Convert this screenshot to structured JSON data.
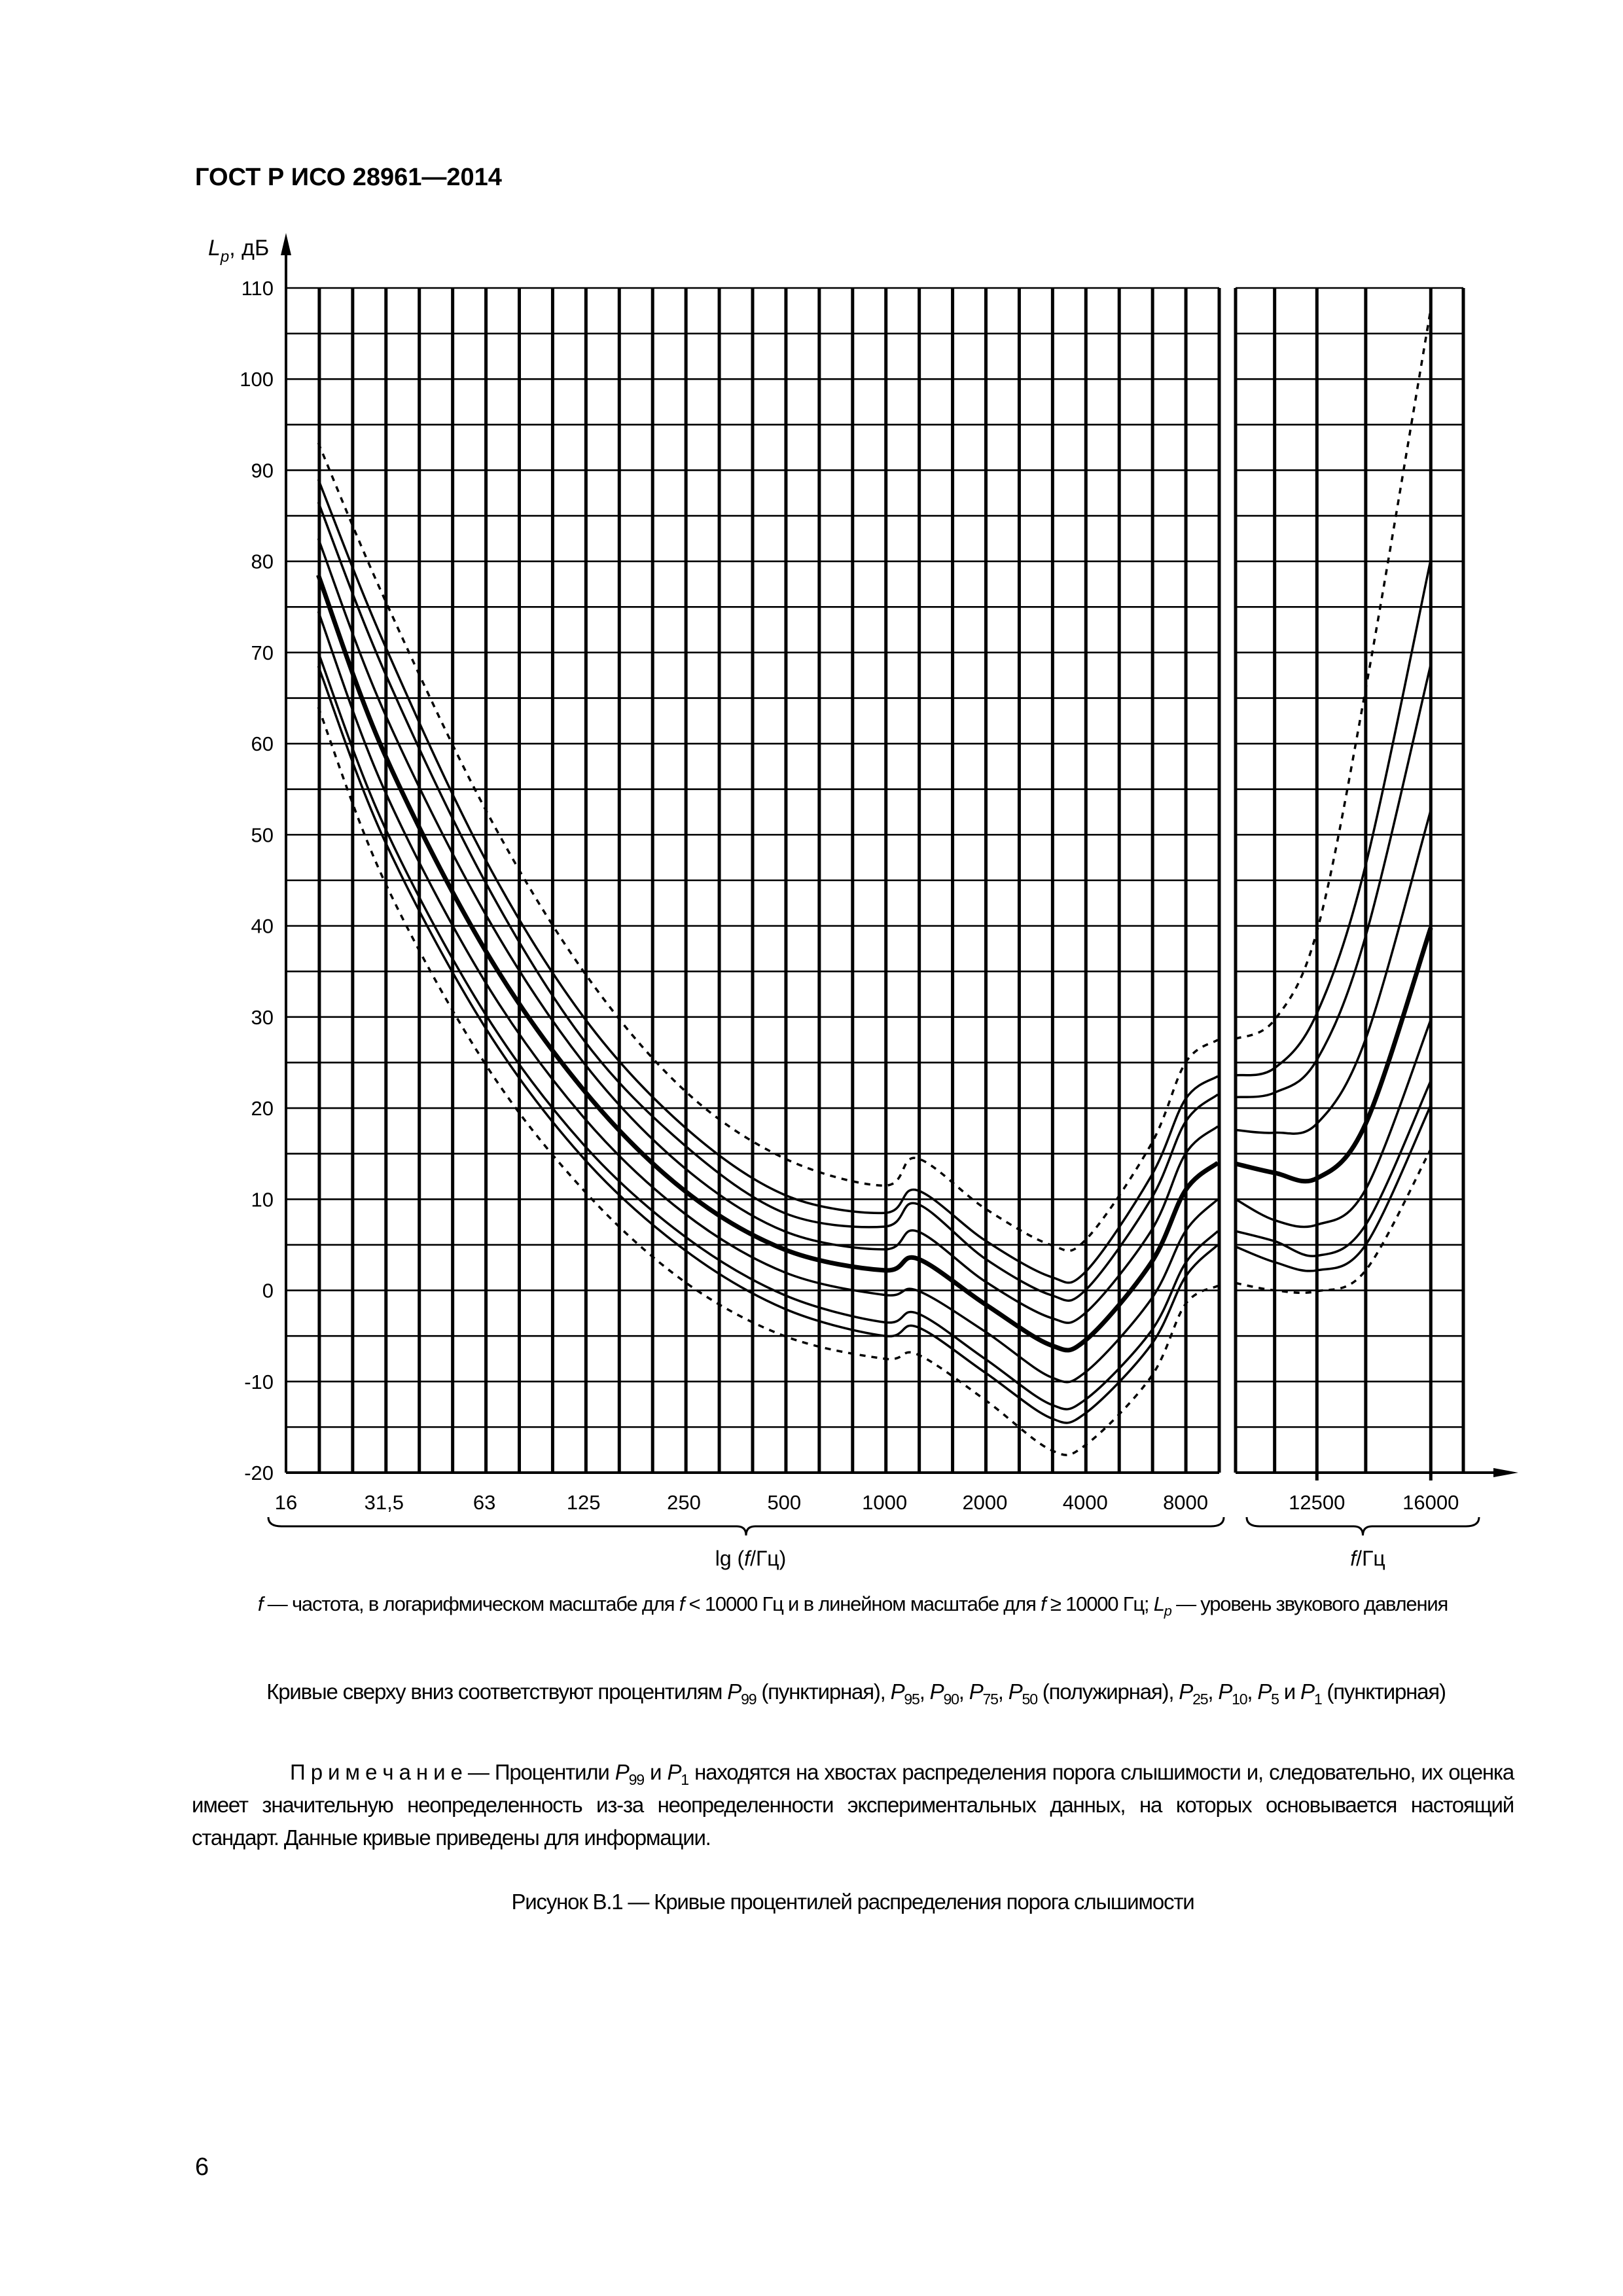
{
  "header": {
    "doc_id": "ГОСТ Р ИСО 28961—2014"
  },
  "chart_data": {
    "type": "line",
    "title": "",
    "ylabel": "Lp, дБ",
    "ylabel_parts": [
      {
        "t": "L",
        "s": "i"
      },
      {
        "t": "p",
        "s": "sub-i"
      },
      {
        "t": ", дБ",
        "s": ""
      }
    ],
    "ylim": [
      -20,
      110
    ],
    "yticks": [
      "110",
      "100",
      "90",
      "80",
      "70",
      "60",
      "50",
      "40",
      "30",
      "20",
      "10",
      "0",
      "-10",
      "-20"
    ],
    "grid": true,
    "left_panel": {
      "scale": "log",
      "xlim": [
        16,
        10000
      ],
      "xlabel": "lg (f/Гц)",
      "xlabel_parts": [
        {
          "t": "lg (",
          "s": ""
        },
        {
          "t": "f",
          "s": "i"
        },
        {
          "t": "/Гц)",
          "s": ""
        }
      ],
      "xticks": [
        "16",
        "31,5",
        "63",
        "125",
        "250",
        "500",
        "1000",
        "2000",
        "4000",
        "8000"
      ],
      "x": [
        20,
        31.5,
        63,
        125,
        250,
        500,
        1000,
        1250,
        2000,
        3150,
        4000,
        6300,
        8000,
        10000
      ]
    },
    "right_panel": {
      "scale": "linear",
      "xlim": [
        10000,
        17000
      ],
      "xlabel": "f/Гц",
      "xlabel_parts": [
        {
          "t": "f",
          "s": "i"
        },
        {
          "t": "/Гц",
          "s": ""
        }
      ],
      "xticks": [
        "12500",
        "16000"
      ],
      "x": [
        10000,
        11200,
        12500,
        14000,
        16000
      ]
    },
    "series": [
      {
        "name": "P99",
        "style": "dotted",
        "left": [
          93,
          76,
          53,
          35,
          22,
          14.5,
          11.5,
          14.5,
          9,
          5,
          5.5,
          16,
          25,
          27.5
        ],
        "right": [
          27.6,
          29.7,
          39.4,
          66,
          107.7
        ]
      },
      {
        "name": "P95",
        "style": "solid",
        "left": [
          89,
          71,
          47.5,
          30,
          18,
          10.5,
          8.5,
          11,
          5.5,
          1.5,
          2,
          12.5,
          21,
          23.5
        ],
        "right": [
          23.6,
          24.4,
          30.4,
          46.7,
          80.2
        ]
      },
      {
        "name": "P90",
        "style": "solid",
        "left": [
          86.5,
          68,
          45,
          27.5,
          16,
          8.5,
          7,
          9.5,
          3.5,
          -0.5,
          0,
          10,
          18.5,
          21.5
        ],
        "right": [
          21.2,
          21.7,
          25.3,
          38.9,
          68.7
        ]
      },
      {
        "name": "P75",
        "style": "solid",
        "left": [
          82.5,
          63.5,
          41.5,
          25,
          13.5,
          6.5,
          4.5,
          6.5,
          1,
          -3,
          -2.5,
          6.5,
          15,
          18
        ],
        "right": [
          17.6,
          17.3,
          18.3,
          27.6,
          52.7
        ]
      },
      {
        "name": "P50",
        "style": "semibold",
        "left": [
          78.5,
          59,
          37.5,
          22,
          11,
          4.5,
          2.2,
          3.5,
          -1.5,
          -6,
          -5.5,
          3,
          11,
          14
        ],
        "right": [
          13.9,
          12.9,
          12.3,
          18.3,
          39.8
        ]
      },
      {
        "name": "P25",
        "style": "solid",
        "left": [
          74.5,
          55,
          34,
          19,
          8.5,
          2,
          -0.5,
          0,
          -4.5,
          -9.5,
          -9,
          -1,
          6.5,
          10
        ],
        "right": [
          10,
          7.7,
          7.2,
          11.1,
          29.7
        ]
      },
      {
        "name": "P10",
        "style": "solid",
        "left": [
          70,
          51,
          30.5,
          16,
          6,
          -0.5,
          -3.5,
          -2.5,
          -7.5,
          -12.5,
          -12,
          -4.5,
          3,
          6.5
        ],
        "right": [
          6.5,
          5.4,
          3.8,
          7.2,
          23
        ]
      },
      {
        "name": "P5",
        "style": "solid",
        "left": [
          68.5,
          49.5,
          29,
          14.5,
          4.5,
          -2,
          -5,
          -4,
          -9,
          -14,
          -13.5,
          -6,
          1.5,
          5
        ],
        "right": [
          4.8,
          3.1,
          2.2,
          5,
          20.3
        ]
      },
      {
        "name": "P1",
        "style": "dotted",
        "left": [
          64,
          45,
          25,
          11,
          1,
          -5,
          -7.5,
          -7,
          -12,
          -17.5,
          -17,
          -9.5,
          -1.5,
          0.5
        ],
        "right": [
          0.8,
          0,
          -0.1,
          2.2,
          15.5
        ]
      }
    ]
  },
  "captions": {
    "axes_note": [
      {
        "t": "f",
        "s": "i"
      },
      {
        "t": " — частота, в логарифмическом масштабе для ",
        "s": ""
      },
      {
        "t": "f",
        "s": "i"
      },
      {
        "t": " < 10000 Гц и в линейном масштабе для ",
        "s": ""
      },
      {
        "t": "f",
        "s": "i"
      },
      {
        "t": " ≥ 10000 Гц; ",
        "s": ""
      },
      {
        "t": "L",
        "s": "i"
      },
      {
        "t": "p",
        "s": "sub-i"
      },
      {
        "t": " — уровень звукового давления",
        "s": ""
      }
    ],
    "curves_note": [
      {
        "t": "Кривые сверху вниз соответствуют процентилям ",
        "s": ""
      },
      {
        "t": "P",
        "s": "i"
      },
      {
        "t": "99",
        "s": "sub"
      },
      {
        "t": " (пунктирная), ",
        "s": ""
      },
      {
        "t": "P",
        "s": "i"
      },
      {
        "t": "95",
        "s": "sub"
      },
      {
        "t": ", ",
        "s": ""
      },
      {
        "t": "P",
        "s": "i"
      },
      {
        "t": "90",
        "s": "sub"
      },
      {
        "t": ", ",
        "s": ""
      },
      {
        "t": "P",
        "s": "i"
      },
      {
        "t": "75",
        "s": "sub"
      },
      {
        "t": ", ",
        "s": ""
      },
      {
        "t": "P",
        "s": "i"
      },
      {
        "t": "50",
        "s": "sub"
      },
      {
        "t": " (полужирная), ",
        "s": ""
      },
      {
        "t": "P",
        "s": "i"
      },
      {
        "t": "25",
        "s": "sub"
      },
      {
        "t": ", ",
        "s": ""
      },
      {
        "t": "P",
        "s": "i"
      },
      {
        "t": "10",
        "s": "sub"
      },
      {
        "t": ", ",
        "s": ""
      },
      {
        "t": "P",
        "s": "i"
      },
      {
        "t": "5",
        "s": "sub"
      },
      {
        "t": " и ",
        "s": ""
      },
      {
        "t": "P",
        "s": "i"
      },
      {
        "t": "1",
        "s": "sub"
      },
      {
        "t": " (пунктирная)",
        "s": ""
      }
    ],
    "remark": [
      {
        "t": "П р и м е ч а н и е — Процентили ",
        "s": ""
      },
      {
        "t": "P",
        "s": "i"
      },
      {
        "t": "99",
        "s": "sub"
      },
      {
        "t": " и ",
        "s": ""
      },
      {
        "t": "P",
        "s": "i"
      },
      {
        "t": "1",
        "s": "sub"
      },
      {
        "t": " находятся на хвостах распределения порога слышимости и, следовательно, их оценка имеет значительную неопределенность из-за неопределенности экспериментальных данных, на которых основывается настоящий стандарт. Данные кривые приведены для информации.",
        "s": ""
      }
    ],
    "figure_title": "Рисунок  В.1 — Кривые процентилей распределения порога слышимости"
  },
  "page_number": "6"
}
